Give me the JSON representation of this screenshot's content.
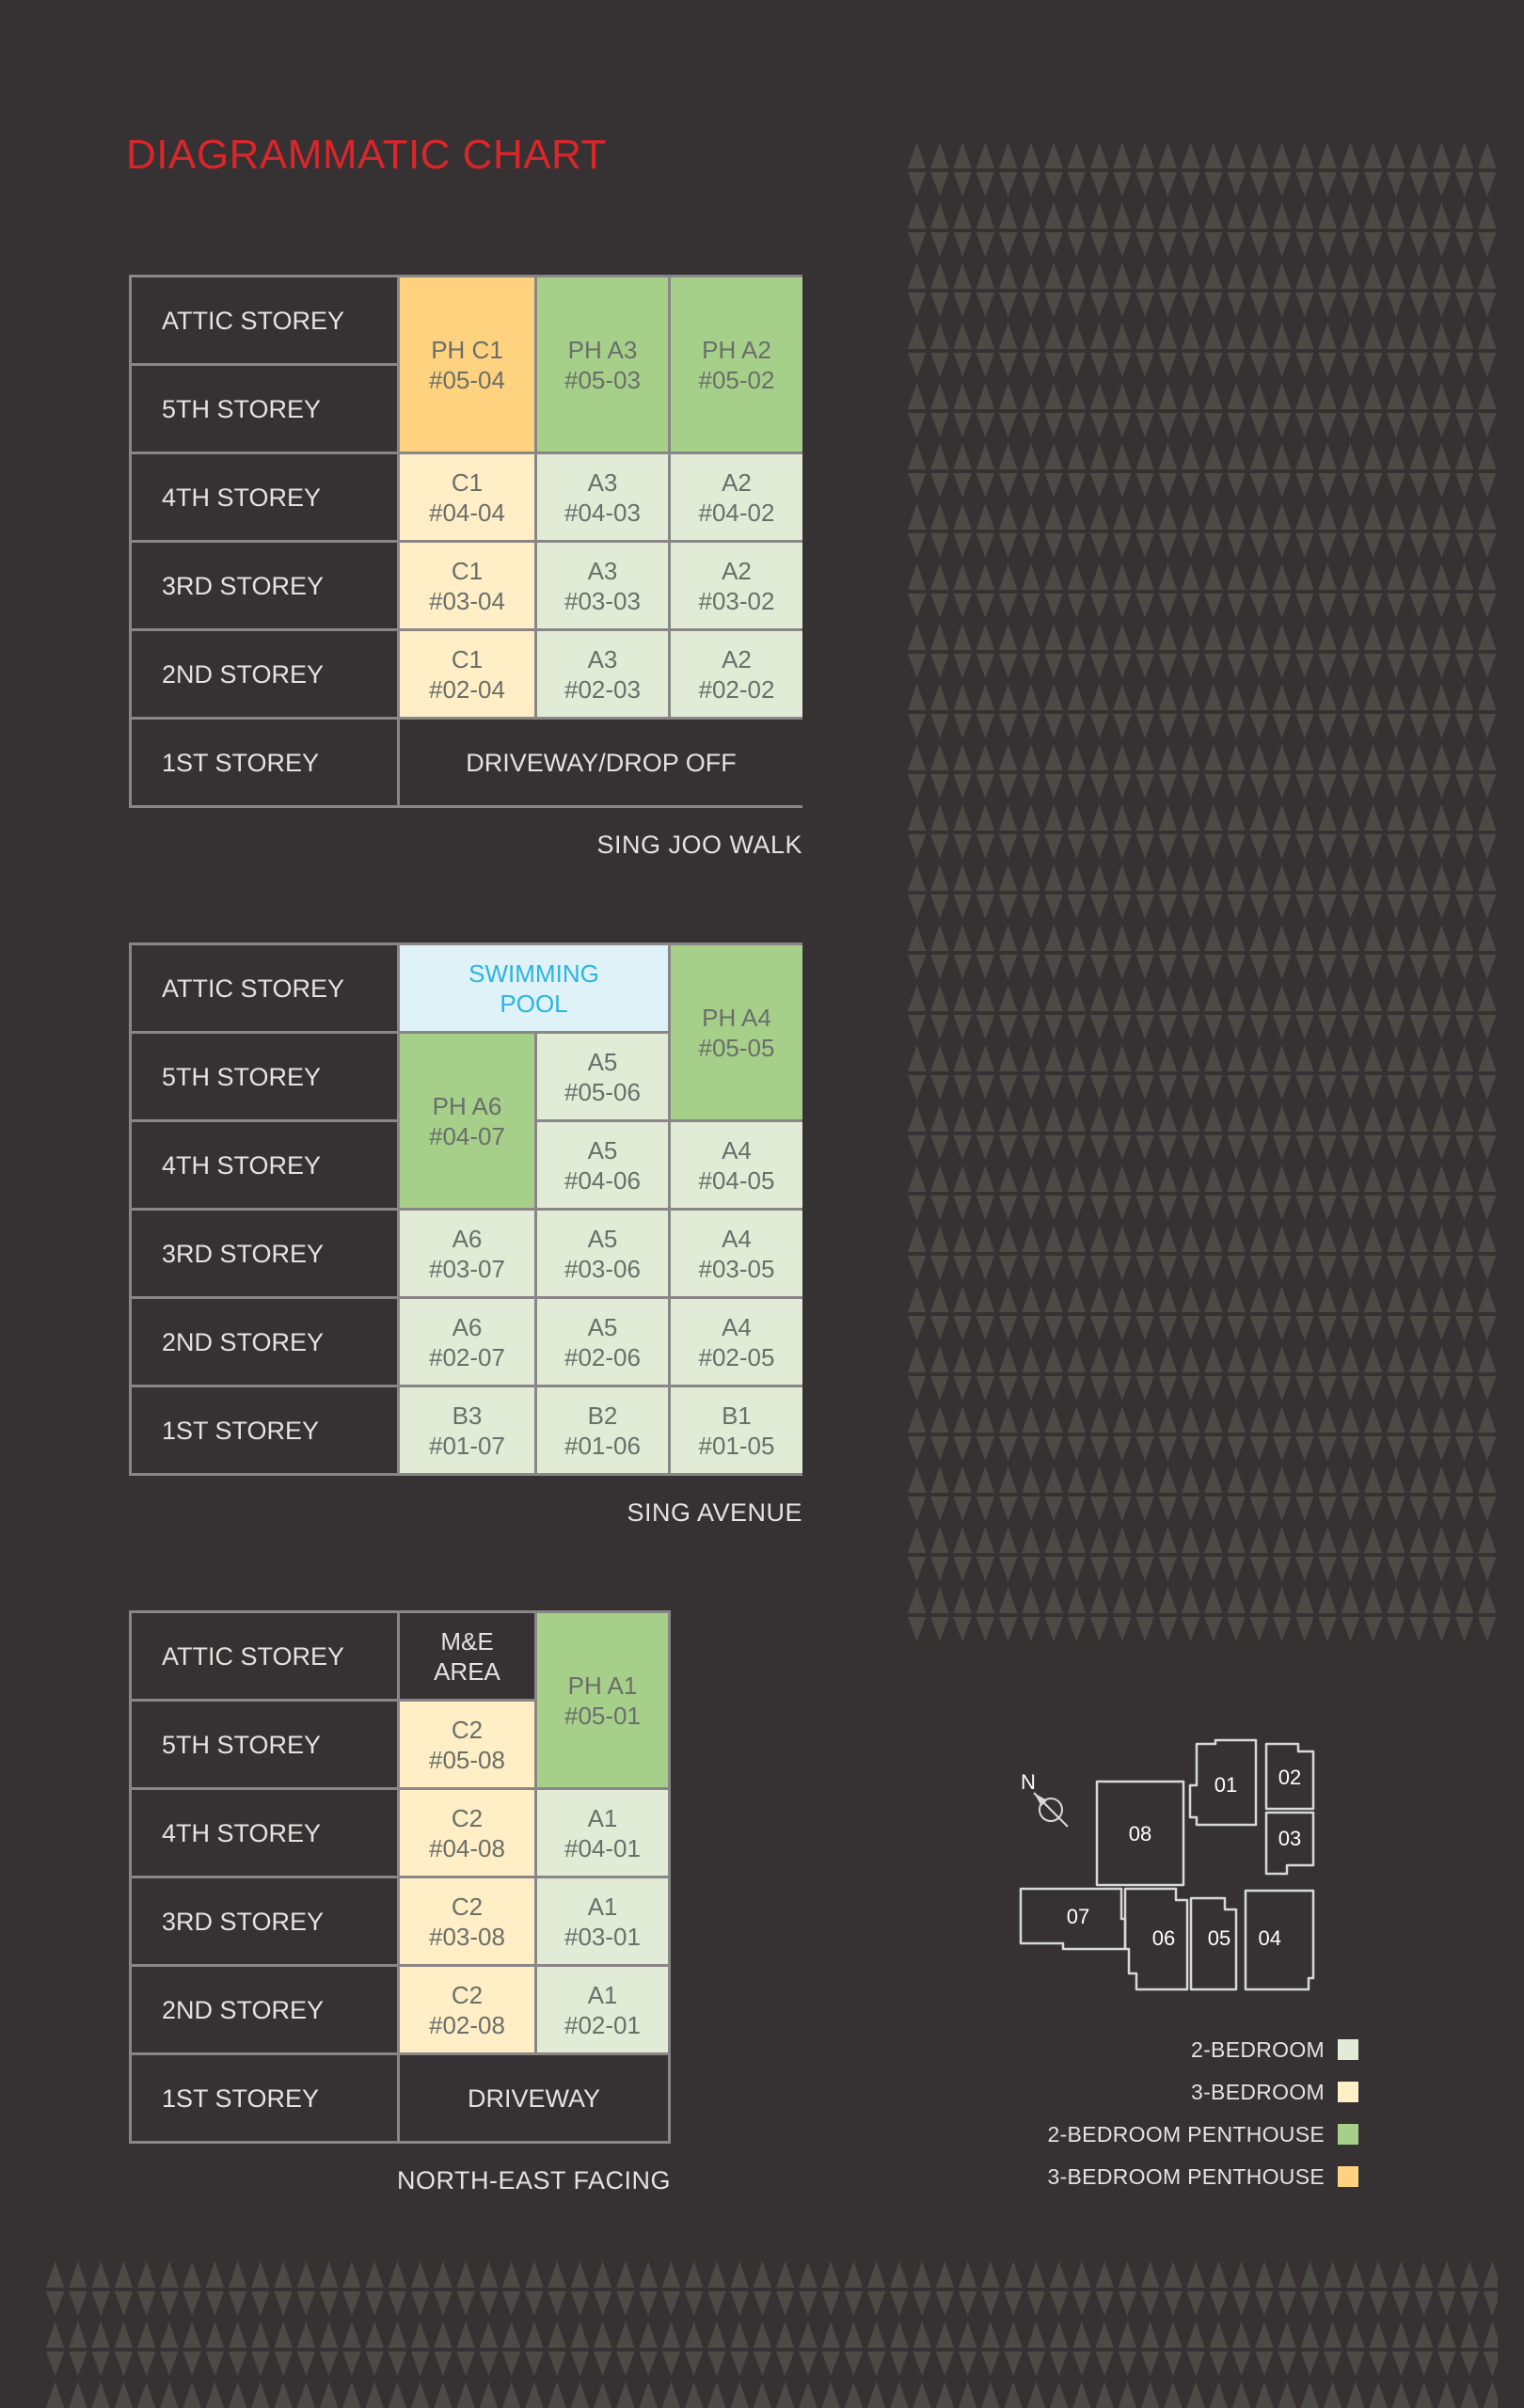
{
  "title": "DIAGRAMMATIC CHART",
  "storeys": [
    "ATTIC STOREY",
    "5TH STOREY",
    "4TH STOREY",
    "3RD STOREY",
    "2ND STOREY",
    "1ST STOREY"
  ],
  "block1": {
    "street": "SING JOO WALK",
    "ph_c1": [
      "PH C1",
      "#05-04"
    ],
    "ph_a3": [
      "PH A3",
      "#05-03"
    ],
    "ph_a2": [
      "PH A2",
      "#05-02"
    ],
    "c1_04": [
      "C1",
      "#04-04"
    ],
    "a3_04": [
      "A3",
      "#04-03"
    ],
    "a2_04": [
      "A2",
      "#04-02"
    ],
    "c1_03": [
      "C1",
      "#03-04"
    ],
    "a3_03": [
      "A3",
      "#03-03"
    ],
    "a2_03": [
      "A2",
      "#03-02"
    ],
    "c1_02": [
      "C1",
      "#02-04"
    ],
    "a3_02": [
      "A3",
      "#02-03"
    ],
    "a2_02": [
      "A2",
      "#02-02"
    ],
    "ground": "DRIVEWAY/DROP OFF"
  },
  "block2": {
    "street": "SING AVENUE",
    "pool": [
      "SWIMMING",
      "POOL"
    ],
    "ph_a4": [
      "PH A4",
      "#05-05"
    ],
    "ph_a6": [
      "PH A6",
      "#04-07"
    ],
    "a5_05": [
      "A5",
      "#05-06"
    ],
    "a5_04": [
      "A5",
      "#04-06"
    ],
    "a4_04": [
      "A4",
      "#04-05"
    ],
    "a6_03": [
      "A6",
      "#03-07"
    ],
    "a5_03": [
      "A5",
      "#03-06"
    ],
    "a4_03": [
      "A4",
      "#03-05"
    ],
    "a6_02": [
      "A6",
      "#02-07"
    ],
    "a5_02": [
      "A5",
      "#02-06"
    ],
    "a4_02": [
      "A4",
      "#02-05"
    ],
    "b3_01": [
      "B3",
      "#01-07"
    ],
    "b2_01": [
      "B2",
      "#01-06"
    ],
    "b1_01": [
      "B1",
      "#01-05"
    ]
  },
  "block3": {
    "street": "NORTH-EAST FACING",
    "me_area": [
      "M&E",
      "AREA"
    ],
    "ph_a1": [
      "PH A1",
      "#05-01"
    ],
    "c2_05": [
      "C2",
      "#05-08"
    ],
    "c2_04": [
      "C2",
      "#04-08"
    ],
    "a1_04": [
      "A1",
      "#04-01"
    ],
    "c2_03": [
      "C2",
      "#03-08"
    ],
    "a1_03": [
      "A1",
      "#03-01"
    ],
    "c2_02": [
      "C2",
      "#02-08"
    ],
    "a1_02": [
      "A1",
      "#02-01"
    ],
    "ground": "DRIVEWAY"
  },
  "key_plan": {
    "north": "N",
    "units": [
      "01",
      "02",
      "03",
      "04",
      "05",
      "06",
      "07",
      "08"
    ]
  },
  "legend": [
    {
      "label": "2-BEDROOM",
      "color": "#e1ebd6"
    },
    {
      "label": "3-BEDROOM",
      "color": "#ffeec6"
    },
    {
      "label": "2-BEDROOM PENTHOUSE",
      "color": "#a6cf8a"
    },
    {
      "label": "3-BEDROOM PENTHOUSE",
      "color": "#ffd27f"
    }
  ],
  "colors": {
    "background": "#363233",
    "title": "#d9262b",
    "pattern": "#4c4a45",
    "two_bedroom": "#e1ebd6",
    "three_bedroom": "#ffeec6",
    "two_bedroom_penthouse": "#a6cf8a",
    "three_bedroom_penthouse": "#ffd27f",
    "pool": "#def2f8"
  }
}
